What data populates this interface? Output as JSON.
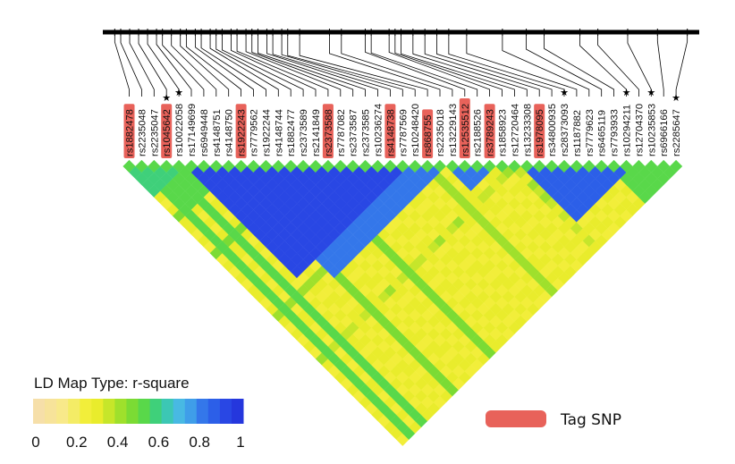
{
  "chart_data": {
    "type": "heatmap",
    "title": "",
    "snps": [
      {
        "id": "rs1882478",
        "tag": true,
        "star": false
      },
      {
        "id": "rs2235048",
        "tag": false,
        "star": false
      },
      {
        "id": "rs2235047",
        "tag": false,
        "star": false
      },
      {
        "id": "rs1045642",
        "tag": true,
        "star": true
      },
      {
        "id": "rs10022058",
        "tag": false,
        "star": true
      },
      {
        "id": "rs17149699",
        "tag": false,
        "star": false
      },
      {
        "id": "rs6949448",
        "tag": false,
        "star": false
      },
      {
        "id": "rs4148751",
        "tag": false,
        "star": false
      },
      {
        "id": "rs4148750",
        "tag": false,
        "star": false
      },
      {
        "id": "rs1922243",
        "tag": true,
        "star": false
      },
      {
        "id": "rs7779562",
        "tag": false,
        "star": false
      },
      {
        "id": "rs1922244",
        "tag": false,
        "star": false
      },
      {
        "id": "rs4148744",
        "tag": false,
        "star": false
      },
      {
        "id": "rs1882477",
        "tag": false,
        "star": false
      },
      {
        "id": "rs2373589",
        "tag": false,
        "star": false
      },
      {
        "id": "rs2141849",
        "tag": false,
        "star": false
      },
      {
        "id": "rs2373588",
        "tag": true,
        "star": false
      },
      {
        "id": "rs7787082",
        "tag": false,
        "star": false
      },
      {
        "id": "rs2373587",
        "tag": false,
        "star": false
      },
      {
        "id": "rs2373585",
        "tag": false,
        "star": false
      },
      {
        "id": "rs10236274",
        "tag": false,
        "star": false
      },
      {
        "id": "rs4148738",
        "tag": true,
        "star": false
      },
      {
        "id": "rs7787569",
        "tag": false,
        "star": false
      },
      {
        "id": "rs10248420",
        "tag": false,
        "star": false
      },
      {
        "id": "rs868755",
        "tag": true,
        "star": false
      },
      {
        "id": "rs2235018",
        "tag": false,
        "star": false
      },
      {
        "id": "rs13229143",
        "tag": false,
        "star": false
      },
      {
        "id": "rs12535512",
        "tag": true,
        "star": false
      },
      {
        "id": "rs2188526",
        "tag": false,
        "star": false
      },
      {
        "id": "rs3789243",
        "tag": true,
        "star": false
      },
      {
        "id": "rs1858923",
        "tag": false,
        "star": false
      },
      {
        "id": "rs12720464",
        "tag": false,
        "star": false
      },
      {
        "id": "rs13233308",
        "tag": false,
        "star": false
      },
      {
        "id": "rs1978095",
        "tag": true,
        "star": false
      },
      {
        "id": "rs34800935",
        "tag": false,
        "star": false
      },
      {
        "id": "rs28373093",
        "tag": false,
        "star": true
      },
      {
        "id": "rs1187882",
        "tag": false,
        "star": false
      },
      {
        "id": "rs7779623",
        "tag": false,
        "star": false
      },
      {
        "id": "rs6465119",
        "tag": false,
        "star": false
      },
      {
        "id": "rs7793933",
        "tag": false,
        "star": false
      },
      {
        "id": "rs10294211",
        "tag": false,
        "star": true
      },
      {
        "id": "rs12704370",
        "tag": false,
        "star": false
      },
      {
        "id": "rs10235853",
        "tag": false,
        "star": true
      },
      {
        "id": "rs6966166",
        "tag": false,
        "star": false
      },
      {
        "id": "rs2285647",
        "tag": false,
        "star": true
      }
    ],
    "snp_positions": [
      0.02,
      0.03,
      0.045,
      0.06,
      0.075,
      0.09,
      0.1,
      0.115,
      0.13,
      0.14,
      0.155,
      0.165,
      0.18,
      0.19,
      0.2,
      0.215,
      0.225,
      0.24,
      0.25,
      0.26,
      0.275,
      0.285,
      0.3,
      0.31,
      0.33,
      0.38,
      0.4,
      0.44,
      0.45,
      0.48,
      0.49,
      0.5,
      0.52,
      0.54,
      0.56,
      0.58,
      0.61,
      0.67,
      0.71,
      0.74,
      0.8,
      0.83,
      0.88,
      0.93,
      0.98
    ],
    "blocks": [
      {
        "from": 0,
        "to": 4,
        "r2": 0.6
      },
      {
        "from": 2,
        "to": 8,
        "r2": 0.5
      },
      {
        "from": 5,
        "to": 22,
        "r2": 0.9
      },
      {
        "from": 8,
        "to": 25,
        "r2": 0.8
      },
      {
        "from": 22,
        "to": 24,
        "r2": 0.75
      },
      {
        "from": 26,
        "to": 29,
        "r2": 0.8
      },
      {
        "from": 32,
        "to": 40,
        "r2": 0.88
      },
      {
        "from": 34,
        "to": 38,
        "r2": 0.65
      },
      {
        "from": 39,
        "to": 44,
        "r2": 0.55
      }
    ],
    "stripes": [
      {
        "snp": 1,
        "r2": 0.55
      },
      {
        "snp": 3,
        "r2": 0.5
      },
      {
        "snp": 8,
        "r2": 0.48
      },
      {
        "snp": 14,
        "r2": 0.45
      },
      {
        "snp": 24,
        "r2": 0.42
      },
      {
        "snp": 31,
        "r2": 0.35
      }
    ],
    "legend": {
      "title": "LD Map Type: r-square",
      "ticks": [
        "0",
        "0.2",
        "0.4",
        "0.6",
        "0.8",
        "1"
      ],
      "tick_values": [
        0,
        0.2,
        0.4,
        0.6,
        0.8,
        1
      ],
      "colors": [
        "#f6dfa9",
        "#f7e39a",
        "#f8e98a",
        "#f4ec66",
        "#f2ee3a",
        "#e9ec2c",
        "#c6e62a",
        "#9fe02c",
        "#7bdb34",
        "#59d84a",
        "#3fd07a",
        "#3cc7b4",
        "#48b9e3",
        "#3f9ee9",
        "#3477ea",
        "#2c5fe8",
        "#2947e4",
        "#2537dd"
      ]
    },
    "tag_legend": {
      "label": "Tag SNP",
      "color": "#e8625a"
    }
  }
}
